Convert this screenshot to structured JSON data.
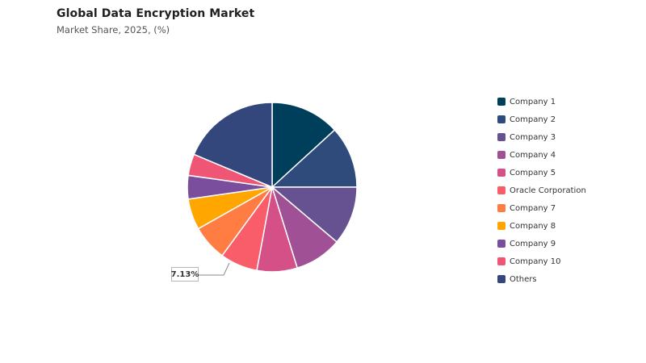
{
  "header": {
    "title": "Global Data Encryption Market",
    "subtitle": "Market Share, 2025, (%)"
  },
  "chart_data": {
    "type": "pie",
    "title": "Global Data Encryption Market",
    "subtitle": "Market Share, 2025, (%)",
    "legend_position": "right",
    "start_angle": "12 o'clock",
    "direction": "clockwise",
    "slices": [
      {
        "name": "Company 1",
        "value": 13.2,
        "color": "#003f5c"
      },
      {
        "name": "Company 2",
        "value": 11.8,
        "color": "#2f4b7c"
      },
      {
        "name": "Company 3",
        "value": 11.2,
        "color": "#665191"
      },
      {
        "name": "Company 4",
        "value": 9.0,
        "color": "#a05195"
      },
      {
        "name": "Company 5",
        "value": 7.7,
        "color": "#d45087"
      },
      {
        "name": "Oracle Corporation",
        "value": 7.13,
        "color": "#f95d6a",
        "data_label": "7.13%"
      },
      {
        "name": "Company 7",
        "value": 6.8,
        "color": "#ff7c43"
      },
      {
        "name": "Company 8",
        "value": 5.9,
        "color": "#ffa600"
      },
      {
        "name": "Company 9",
        "value": 4.5,
        "color": "#7a4e9d"
      },
      {
        "name": "Company 10",
        "value": 4.1,
        "color": "#ef5675"
      },
      {
        "name": "Others",
        "value": 18.67,
        "color": "#34477c"
      }
    ]
  }
}
